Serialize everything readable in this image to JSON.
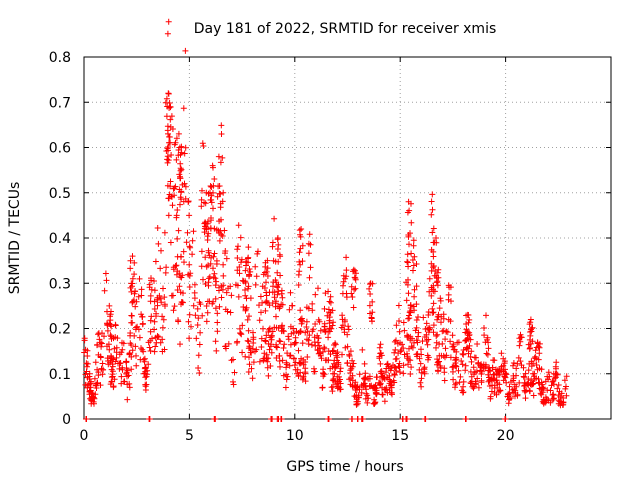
{
  "chart_data": {
    "type": "scatter",
    "title": "Day 181 of 2022, SRMTID for receiver xmis",
    "xlabel": "GPS time / hours",
    "ylabel": "SRMTID / TECUs",
    "xlim": [
      0,
      25
    ],
    "ylim": [
      0,
      0.8
    ],
    "x_ticks": [
      0,
      5,
      10,
      15,
      20
    ],
    "x_tick_labels": [
      "0",
      "5",
      "10",
      "15",
      "20"
    ],
    "y_ticks": [
      0,
      0.1,
      0.2,
      0.3,
      0.4,
      0.5,
      0.6,
      0.7,
      0.8
    ],
    "y_tick_labels": [
      "0",
      "0.1",
      "0.2",
      "0.3",
      "0.4",
      "0.5",
      "0.6",
      "0.7",
      "0.8"
    ],
    "grid": true,
    "marker": "+",
    "color": "#ff0000",
    "series": [
      {
        "name": "SRMTID",
        "trend": [
          [
            0.0,
            0.15
          ],
          [
            0.2,
            0.07
          ],
          [
            0.5,
            0.08
          ],
          [
            0.8,
            0.12
          ],
          [
            1.0,
            0.18
          ],
          [
            1.2,
            0.2
          ],
          [
            1.4,
            0.12
          ],
          [
            1.8,
            0.1
          ],
          [
            2.0,
            0.12
          ],
          [
            2.3,
            0.18
          ],
          [
            2.6,
            0.2
          ],
          [
            3.0,
            0.15
          ],
          [
            3.3,
            0.22
          ],
          [
            3.6,
            0.28
          ],
          [
            3.9,
            0.45
          ],
          [
            4.05,
            0.65
          ],
          [
            4.2,
            0.42
          ],
          [
            4.4,
            0.35
          ],
          [
            4.6,
            0.5
          ],
          [
            4.8,
            0.45
          ],
          [
            5.0,
            0.3
          ],
          [
            5.3,
            0.25
          ],
          [
            5.7,
            0.35
          ],
          [
            6.0,
            0.32
          ],
          [
            6.3,
            0.4
          ],
          [
            6.6,
            0.3
          ],
          [
            7.0,
            0.22
          ],
          [
            7.5,
            0.25
          ],
          [
            8.0,
            0.18
          ],
          [
            8.5,
            0.22
          ],
          [
            9.0,
            0.22
          ],
          [
            9.5,
            0.18
          ],
          [
            10.0,
            0.15
          ],
          [
            10.5,
            0.2
          ],
          [
            11.0,
            0.22
          ],
          [
            11.5,
            0.15
          ],
          [
            12.0,
            0.12
          ],
          [
            12.5,
            0.2
          ],
          [
            12.7,
            0.1
          ],
          [
            13.0,
            0.07
          ],
          [
            13.5,
            0.08
          ],
          [
            14.0,
            0.08
          ],
          [
            14.5,
            0.1
          ],
          [
            15.0,
            0.14
          ],
          [
            15.3,
            0.25
          ],
          [
            15.6,
            0.22
          ],
          [
            16.0,
            0.15
          ],
          [
            16.5,
            0.25
          ],
          [
            17.0,
            0.2
          ],
          [
            17.5,
            0.15
          ],
          [
            18.0,
            0.13
          ],
          [
            18.5,
            0.12
          ],
          [
            19.0,
            0.12
          ],
          [
            19.5,
            0.1
          ],
          [
            20.0,
            0.08
          ],
          [
            20.5,
            0.09
          ],
          [
            21.0,
            0.11
          ],
          [
            21.5,
            0.1
          ],
          [
            22.0,
            0.07
          ],
          [
            22.5,
            0.06
          ],
          [
            22.9,
            0.07
          ]
        ],
        "peaks": [
          [
            4.0,
            0.72
          ],
          [
            4.1,
            0.69
          ],
          [
            4.5,
            0.63
          ],
          [
            4.55,
            0.6
          ],
          [
            6.1,
            0.56
          ],
          [
            6.4,
            0.58
          ],
          [
            5.8,
            0.5
          ],
          [
            10.3,
            0.42
          ],
          [
            12.8,
            0.33
          ],
          [
            15.4,
            0.48
          ],
          [
            16.7,
            0.4
          ],
          [
            2.3,
            0.36
          ],
          [
            13.6,
            0.3
          ],
          [
            9.2,
            0.4
          ],
          [
            7.8,
            0.38
          ],
          [
            8.7,
            0.35
          ],
          [
            11.7,
            0.27
          ],
          [
            1.2,
            0.25
          ],
          [
            18.2,
            0.23
          ],
          [
            21.2,
            0.22
          ]
        ],
        "zero_points": [
          0.1,
          3.1,
          6.2,
          8.9,
          9.2,
          9.35,
          11.6,
          12.7,
          13.0,
          13.2,
          15.1,
          15.3,
          16.2,
          18.1,
          20.0
        ],
        "x_start": 0.0,
        "x_end": 22.9,
        "points_count": 1500
      }
    ]
  }
}
